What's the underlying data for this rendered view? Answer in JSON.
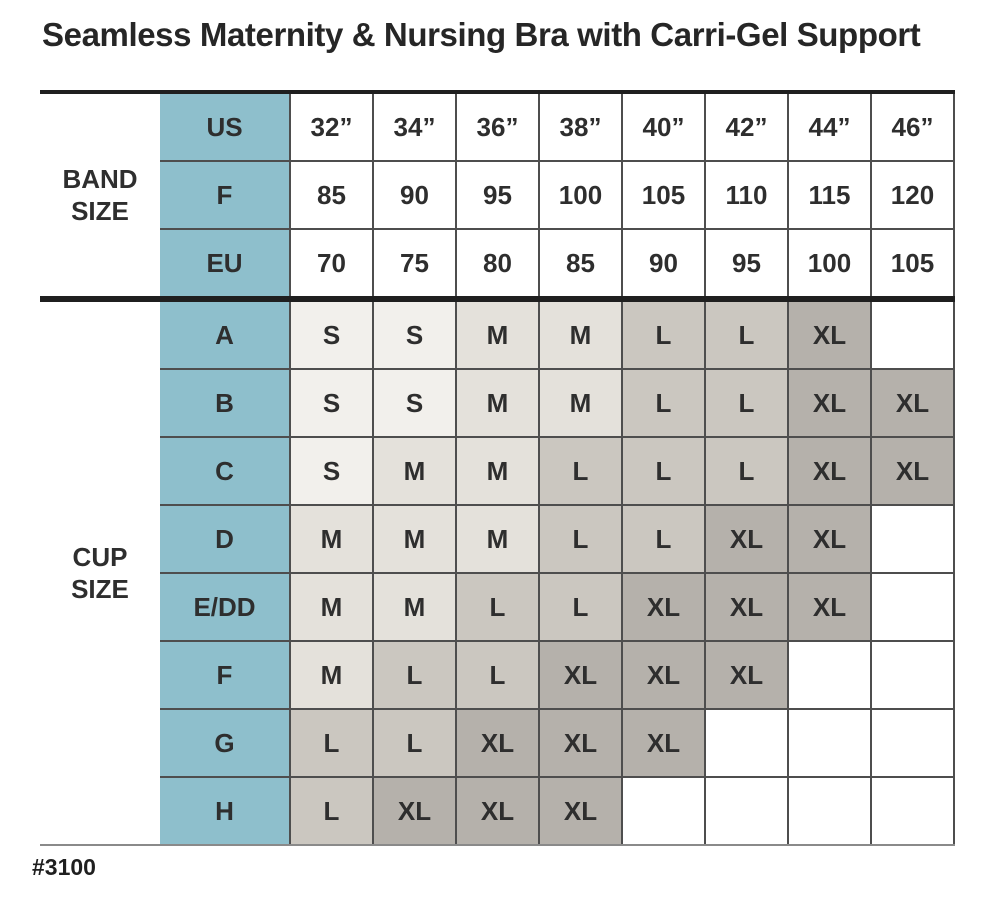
{
  "title": "Seamless Maternity & Nursing Bra with Carri-Gel Support",
  "footer": {
    "style_number": "#3100"
  },
  "colors": {
    "header_blue": "#8ebfcc",
    "header_text": "#1c3540",
    "grid_line": "#4e4e4e",
    "thick_line": "#1f1f1f"
  },
  "cell_colors": {
    "S": "#f2f0ec",
    "M": "#e4e1db",
    "L": "#cbc7c0",
    "XL": "#b5b1ab"
  },
  "chart_data": {
    "type": "table",
    "title": "Seamless Maternity & Nursing Bra with Carri-Gel Support",
    "band_section": {
      "label": "BAND\nSIZE",
      "rows": [
        {
          "label": "US",
          "values": [
            "32”",
            "34”",
            "36”",
            "38”",
            "40”",
            "42”",
            "44”",
            "46”"
          ]
        },
        {
          "label": "F",
          "values": [
            "85",
            "90",
            "95",
            "100",
            "105",
            "110",
            "115",
            "120"
          ]
        },
        {
          "label": "EU",
          "values": [
            "70",
            "75",
            "80",
            "85",
            "90",
            "95",
            "100",
            "105"
          ]
        }
      ]
    },
    "cup_section": {
      "label": "CUP\nSIZE",
      "rows": [
        {
          "label": "A",
          "values": [
            "S",
            "S",
            "M",
            "M",
            "L",
            "L",
            "XL",
            ""
          ]
        },
        {
          "label": "B",
          "values": [
            "S",
            "S",
            "M",
            "M",
            "L",
            "L",
            "XL",
            "XL"
          ]
        },
        {
          "label": "C",
          "values": [
            "S",
            "M",
            "M",
            "L",
            "L",
            "L",
            "XL",
            "XL"
          ]
        },
        {
          "label": "D",
          "values": [
            "M",
            "M",
            "M",
            "L",
            "L",
            "XL",
            "XL",
            ""
          ]
        },
        {
          "label": "E/DD",
          "values": [
            "M",
            "M",
            "L",
            "L",
            "XL",
            "XL",
            "XL",
            ""
          ]
        },
        {
          "label": "F",
          "values": [
            "M",
            "L",
            "L",
            "XL",
            "XL",
            "XL",
            "",
            ""
          ]
        },
        {
          "label": "G",
          "values": [
            "L",
            "L",
            "XL",
            "XL",
            "XL",
            "",
            "",
            ""
          ]
        },
        {
          "label": "H",
          "values": [
            "L",
            "XL",
            "XL",
            "XL",
            "",
            "",
            "",
            ""
          ]
        }
      ]
    }
  }
}
